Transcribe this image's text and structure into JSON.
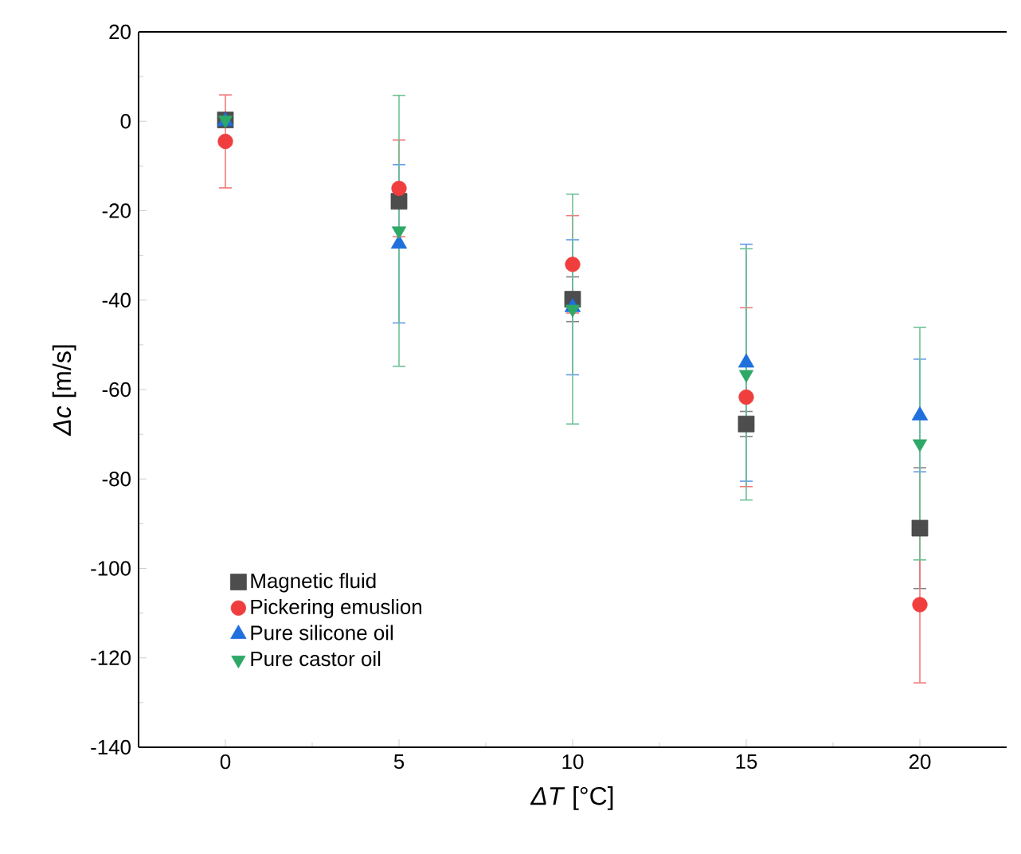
{
  "chart_data": {
    "type": "scatter",
    "xlabel": "*ΔT* [°C]",
    "ylabel": "*Δc* [m/s]",
    "x": [
      0,
      5,
      10,
      15,
      20
    ],
    "series": [
      {
        "name": "Magnetic fluid",
        "color": "#4d4d4d",
        "marker": "square",
        "values": [
          0.3,
          -17.9,
          -39.8,
          -67.7,
          -91.0
        ],
        "errors": [
          null,
          null,
          5,
          2.8,
          13.5
        ]
      },
      {
        "name": "Pickering emuslion",
        "color": "#f03e3e",
        "marker": "circle",
        "values": [
          -4.5,
          -15.0,
          -32.0,
          -61.7,
          -108.1
        ],
        "errors": [
          10.4,
          10.8,
          10.9,
          20,
          17.5
        ]
      },
      {
        "name": "Pure silicone oil",
        "color": "#1f6fdd",
        "marker": "triangle",
        "values": [
          0,
          -27.4,
          -41.6,
          -54.0,
          -65.8
        ],
        "errors": [
          null,
          17.7,
          15.1,
          26.5,
          12.6
        ]
      },
      {
        "name": "Pure castor oil",
        "color": "#2ea866",
        "marker": "triangle-down",
        "values": [
          0.3,
          -24.5,
          -42.0,
          -56.6,
          -72.1
        ],
        "errors": [
          null,
          30.3,
          25.7,
          28.1,
          26.0
        ]
      }
    ],
    "xlim": [
      -2.5,
      22.5
    ],
    "ylim": [
      -140,
      20
    ],
    "xticks": [
      0,
      5,
      10,
      15,
      20
    ],
    "yticks": [
      -140,
      -120,
      -100,
      -80,
      -60,
      -40,
      -20,
      0,
      20
    ],
    "legend": "bottom left",
    "grid": false
  }
}
